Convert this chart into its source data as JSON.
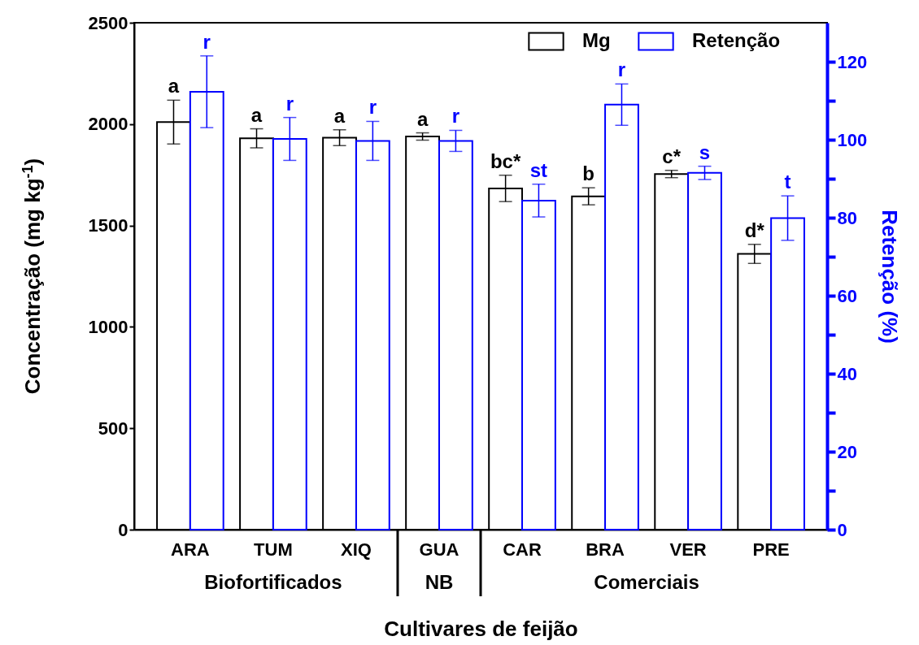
{
  "chart_data": {
    "type": "bar",
    "xlabel": "Cultivares de feijão",
    "ylabel": "Concentração (mg kg$^{-1}$)",
    "y2label": "Retenção (%)",
    "categories": [
      "ARA",
      "TUM",
      "XIQ",
      "GUA",
      "CAR",
      "BRA",
      "VER",
      "PRE"
    ],
    "series": [
      {
        "name": "Mg",
        "color": "#000000",
        "values": [
          2010,
          1930,
          1933,
          1939,
          1683,
          1644,
          1754,
          1360
        ],
        "errors": [
          108,
          47,
          39,
          18,
          65,
          42,
          18,
          47
        ],
        "value_labels": [
          "a",
          "a",
          "a",
          "a",
          "bc*",
          "b",
          "c*",
          "d*"
        ]
      },
      {
        "name": "Retenção",
        "color": "#0000ff",
        "axis": "y2",
        "values": [
          112.3,
          100.2,
          99.7,
          99.7,
          84.4,
          109.0,
          91.5,
          79.9
        ],
        "errors": [
          9.2,
          5.5,
          5.0,
          2.7,
          4.2,
          5.3,
          1.7,
          5.7
        ],
        "value_labels": [
          "r",
          "r",
          "r",
          "r",
          "st",
          "r",
          "s",
          "t"
        ]
      }
    ],
    "ylim": [
      0,
      2500
    ],
    "yticks": [
      0,
      500,
      1000,
      1500,
      2000,
      2500
    ],
    "y2lim": [
      0,
      130
    ],
    "y2ticks": [
      0,
      {
        "value": 10,
        "label": null
      },
      20,
      {
        "value": 30,
        "label": null
      },
      40,
      {
        "value": 50,
        "label": null
      },
      60,
      {
        "value": 70,
        "label": null
      },
      80,
      {
        "value": 90,
        "label": null
      },
      100,
      {
        "value": 110,
        "label": null
      },
      120
    ],
    "annotations": [
      "Biofortificados",
      "NB",
      "Comerciais"
    ],
    "legend": "top right",
    "grid": false
  }
}
